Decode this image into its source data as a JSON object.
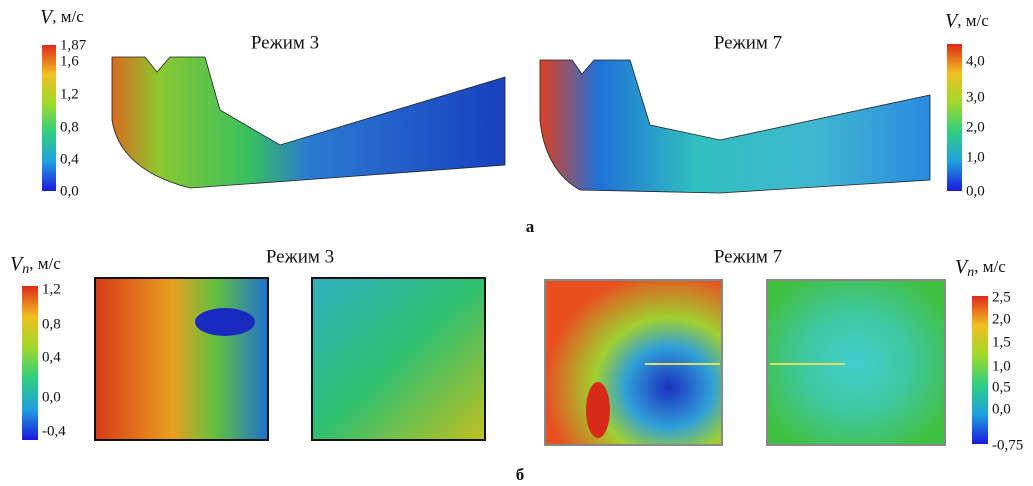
{
  "panel_a": {
    "label": "а",
    "left": {
      "title": "Режим 3",
      "colorbar": {
        "symbol": "V",
        "unit": ", м/с",
        "ticks": [
          "1,87",
          "1,6",
          "1,2",
          "0,8",
          "0,4",
          "0,0"
        ]
      }
    },
    "right": {
      "title": "Режим 7",
      "colorbar": {
        "symbol": "V",
        "unit": ", м/с",
        "ticks": [
          "4,0",
          "3,0",
          "2,0",
          "1,0",
          "0,0"
        ]
      }
    }
  },
  "panel_b": {
    "label": "б",
    "left": {
      "title": "Режим 3",
      "colorbar": {
        "symbol": "V",
        "subscript": "n",
        "unit": ", м/с",
        "ticks": [
          "1,2",
          "0,8",
          "0,4",
          "0,0",
          "-0,4"
        ]
      }
    },
    "right": {
      "title": "Режим 7",
      "colorbar": {
        "symbol": "V",
        "subscript": "n",
        "unit": ", м/с",
        "ticks": [
          "2,5",
          "2,0",
          "1,5",
          "1,0",
          "0,5",
          "0,0",
          "-0,75"
        ]
      }
    }
  }
}
